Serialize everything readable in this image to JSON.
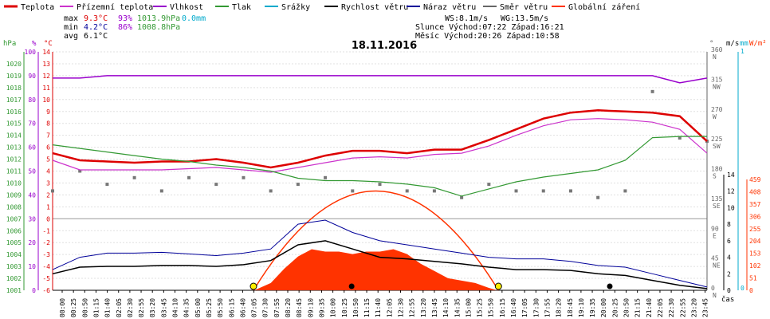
{
  "legend": [
    {
      "label": "Teplota",
      "color": "#dd0000"
    },
    {
      "label": "Přízemní teplota",
      "color": "#cc33cc"
    },
    {
      "label": "Vlhkost",
      "color": "#9900cc"
    },
    {
      "label": "Tlak",
      "color": "#339933"
    },
    {
      "label": "Srážky",
      "color": "#00aacc"
    },
    {
      "label": "Rychlost větru",
      "color": "#000000"
    },
    {
      "label": "Náraz větru",
      "color": "#000099"
    },
    {
      "label": "Směr větru",
      "color": "#666666"
    },
    {
      "label": "Globální záření",
      "color": "#ff3300"
    }
  ],
  "stats": {
    "max_label": "max",
    "min_label": "min",
    "avg_label": "avg",
    "max_temp": "9.3°C",
    "max_hum": "93%",
    "max_press": "1013.9hPa",
    "max_rain": "0.0mm",
    "min_temp": "4.2°C",
    "min_hum": "86%",
    "min_press": "1008.8hPa",
    "avg_temp": "6.1°C"
  },
  "info": {
    "ws": "WS:8.1m/s",
    "wg": "WG:13.5m/s",
    "sun": "Slunce Východ:07:22  Západ:16:21",
    "moon": "Měsíc  Východ:20:26  Západ:10:58"
  },
  "title": "18.11.2016",
  "axis_units": {
    "hpa": "hPa",
    "pct": "%",
    "degc": "°C",
    "deg": "°",
    "ms": "m/s",
    "mm": "mm",
    "w": "W/m²",
    "time": "čas"
  },
  "chart_data": {
    "type": "line",
    "date": "18.11.2016",
    "x_labels": [
      "00:00",
      "00:25",
      "00:50",
      "01:15",
      "01:40",
      "02:05",
      "02:30",
      "02:55",
      "03:20",
      "03:45",
      "04:10",
      "04:35",
      "05:00",
      "05:25",
      "05:50",
      "06:15",
      "06:40",
      "07:05",
      "07:30",
      "07:55",
      "08:20",
      "08:45",
      "09:10",
      "09:35",
      "10:00",
      "10:25",
      "10:50",
      "11:15",
      "11:40",
      "12:05",
      "12:30",
      "12:55",
      "13:20",
      "13:45",
      "14:10",
      "14:35",
      "15:00",
      "15:25",
      "15:50",
      "16:15",
      "16:40",
      "17:05",
      "17:30",
      "17:55",
      "18:20",
      "18:45",
      "19:10",
      "19:35",
      "20:00",
      "20:25",
      "20:50",
      "21:15",
      "21:40",
      "22:05",
      "22:30",
      "22:55",
      "23:20",
      "23:45"
    ],
    "axes": {
      "pressure_hpa": {
        "ticks": [
          1001,
          1002,
          1003,
          1004,
          1005,
          1006,
          1007,
          1008,
          1009,
          1010,
          1011,
          1012,
          1013,
          1014,
          1015,
          1016,
          1017,
          1018,
          1019,
          1020
        ],
        "range": [
          1001,
          1021
        ]
      },
      "humidity_pct": {
        "ticks": [
          0,
          10,
          20,
          30,
          40,
          50,
          60,
          70,
          80,
          90,
          100
        ],
        "range": [
          0,
          100
        ]
      },
      "temperature_c": {
        "ticks": [
          -6,
          -5,
          -4,
          -3,
          -2,
          -1,
          0,
          1,
          2,
          3,
          4,
          5,
          6,
          7,
          8,
          9,
          10,
          11,
          12,
          13,
          14
        ],
        "range": [
          -6,
          14
        ]
      },
      "direction_deg": {
        "ticks": [
          0,
          45,
          90,
          135,
          180,
          225,
          270,
          315,
          360
        ],
        "labels": [
          "N",
          "NE",
          "E",
          "SE",
          "S",
          "SW",
          "W",
          "NW",
          "N"
        ]
      },
      "wind_ms": {
        "ticks": [
          0,
          2,
          4,
          6,
          8,
          10,
          12,
          14
        ]
      },
      "rain_mm": {
        "ticks": [
          0,
          1
        ]
      },
      "radiation_w": {
        "ticks": [
          0,
          51,
          102,
          153,
          204,
          255,
          306,
          357,
          408,
          459
        ]
      }
    },
    "series": [
      {
        "name": "Teplota",
        "color": "#dd0000",
        "x": [
          0,
          1,
          2,
          3,
          4,
          5,
          6,
          7,
          8,
          9,
          10,
          11,
          12,
          13,
          14,
          15,
          16,
          17,
          18,
          19,
          20,
          21,
          22,
          23,
          24
        ],
        "values": [
          5.5,
          4.9,
          4.8,
          4.7,
          4.8,
          4.8,
          5.0,
          4.7,
          4.3,
          4.7,
          5.3,
          5.7,
          5.7,
          5.5,
          5.8,
          5.8,
          6.6,
          7.5,
          8.4,
          8.9,
          9.1,
          9.0,
          8.9,
          8.6,
          6.5
        ]
      },
      {
        "name": "Přízemní teplota",
        "color": "#cc33cc",
        "x": [
          0,
          1,
          2,
          3,
          4,
          5,
          6,
          7,
          8,
          9,
          10,
          11,
          12,
          13,
          14,
          15,
          16,
          17,
          18,
          19,
          20,
          21,
          22,
          23,
          24
        ],
        "values": [
          4.9,
          4.1,
          4.1,
          4.1,
          4.1,
          4.2,
          4.3,
          4.1,
          3.9,
          4.3,
          4.7,
          5.1,
          5.2,
          5.1,
          5.4,
          5.5,
          6.1,
          7.0,
          7.8,
          8.3,
          8.4,
          8.3,
          8.1,
          7.5,
          5.5
        ]
      },
      {
        "name": "Vlhkost",
        "color": "#9900cc",
        "x": [
          0,
          1,
          2,
          3,
          4,
          5,
          6,
          7,
          8,
          9,
          10,
          11,
          12,
          13,
          14,
          15,
          16,
          17,
          18,
          19,
          20,
          21,
          22,
          23,
          24
        ],
        "values": [
          89,
          89,
          90,
          90,
          90,
          90,
          90,
          90,
          90,
          90,
          90,
          90,
          90,
          90,
          90,
          90,
          90,
          90,
          90,
          90,
          90,
          90,
          90,
          87,
          89
        ]
      },
      {
        "name": "Tlak",
        "color": "#339933",
        "x": [
          0,
          1,
          2,
          3,
          4,
          5,
          6,
          7,
          8,
          9,
          10,
          11,
          12,
          13,
          14,
          15,
          16,
          17,
          18,
          19,
          20,
          21,
          22,
          23,
          24
        ],
        "values": [
          1013.2,
          1012.9,
          1012.6,
          1012.3,
          1012.0,
          1011.8,
          1011.5,
          1011.3,
          1011.0,
          1010.4,
          1010.2,
          1010.2,
          1010.1,
          1009.9,
          1009.6,
          1008.9,
          1009.5,
          1010.1,
          1010.5,
          1010.8,
          1011.1,
          1011.9,
          1013.8,
          1013.9,
          1013.9
        ]
      },
      {
        "name": "Rychlost větru",
        "color": "#000000",
        "x": [
          0,
          1,
          2,
          3,
          4,
          5,
          6,
          7,
          8,
          9,
          10,
          11,
          12,
          13,
          14,
          15,
          16,
          17,
          18,
          19,
          20,
          21,
          22,
          23,
          24
        ],
        "values": [
          2.0,
          2.8,
          2.9,
          2.9,
          3.0,
          3.0,
          2.9,
          3.1,
          3.6,
          5.5,
          6.0,
          5.0,
          4.0,
          3.8,
          3.5,
          3.2,
          2.8,
          2.5,
          2.5,
          2.4,
          2.0,
          1.8,
          1.2,
          0.6,
          0.2
        ]
      },
      {
        "name": "Náraz větru",
        "color": "#000099",
        "x": [
          0,
          1,
          2,
          3,
          4,
          5,
          6,
          7,
          8,
          9,
          10,
          11,
          12,
          13,
          14,
          15,
          16,
          17,
          18,
          19,
          20,
          21,
          22,
          23,
          24
        ],
        "values": [
          2.5,
          4.0,
          4.5,
          4.5,
          4.6,
          4.4,
          4.2,
          4.5,
          5.0,
          8.0,
          8.5,
          7.0,
          6.0,
          5.5,
          5.0,
          4.5,
          4.0,
          3.8,
          3.8,
          3.5,
          3.0,
          2.8,
          2.0,
          1.2,
          0.4
        ]
      },
      {
        "name": "Globální záření",
        "color": "#ff3300",
        "x": [
          7.4,
          8,
          8.5,
          9,
          9.5,
          10,
          10.5,
          11,
          11.5,
          12,
          12.5,
          13,
          13.5,
          14,
          14.5,
          15,
          15.5,
          16,
          16.3
        ],
        "values": [
          0,
          30,
          90,
          140,
          170,
          160,
          160,
          150,
          160,
          160,
          170,
          150,
          110,
          80,
          50,
          40,
          30,
          10,
          0
        ]
      }
    ],
    "wind_direction_deg": {
      "x": [
        0,
        1,
        2,
        3,
        4,
        5,
        6,
        7,
        8,
        9,
        10,
        11,
        12,
        13,
        14,
        15,
        16,
        17,
        18,
        19,
        20,
        21,
        22,
        23,
        24
      ],
      "values": [
        150,
        180,
        160,
        170,
        150,
        170,
        160,
        170,
        150,
        160,
        170,
        150,
        160,
        150,
        150,
        140,
        160,
        150,
        150,
        150,
        140,
        150,
        300,
        230,
        225
      ]
    },
    "sunrise": "07:22",
    "sunset": "16:21"
  }
}
